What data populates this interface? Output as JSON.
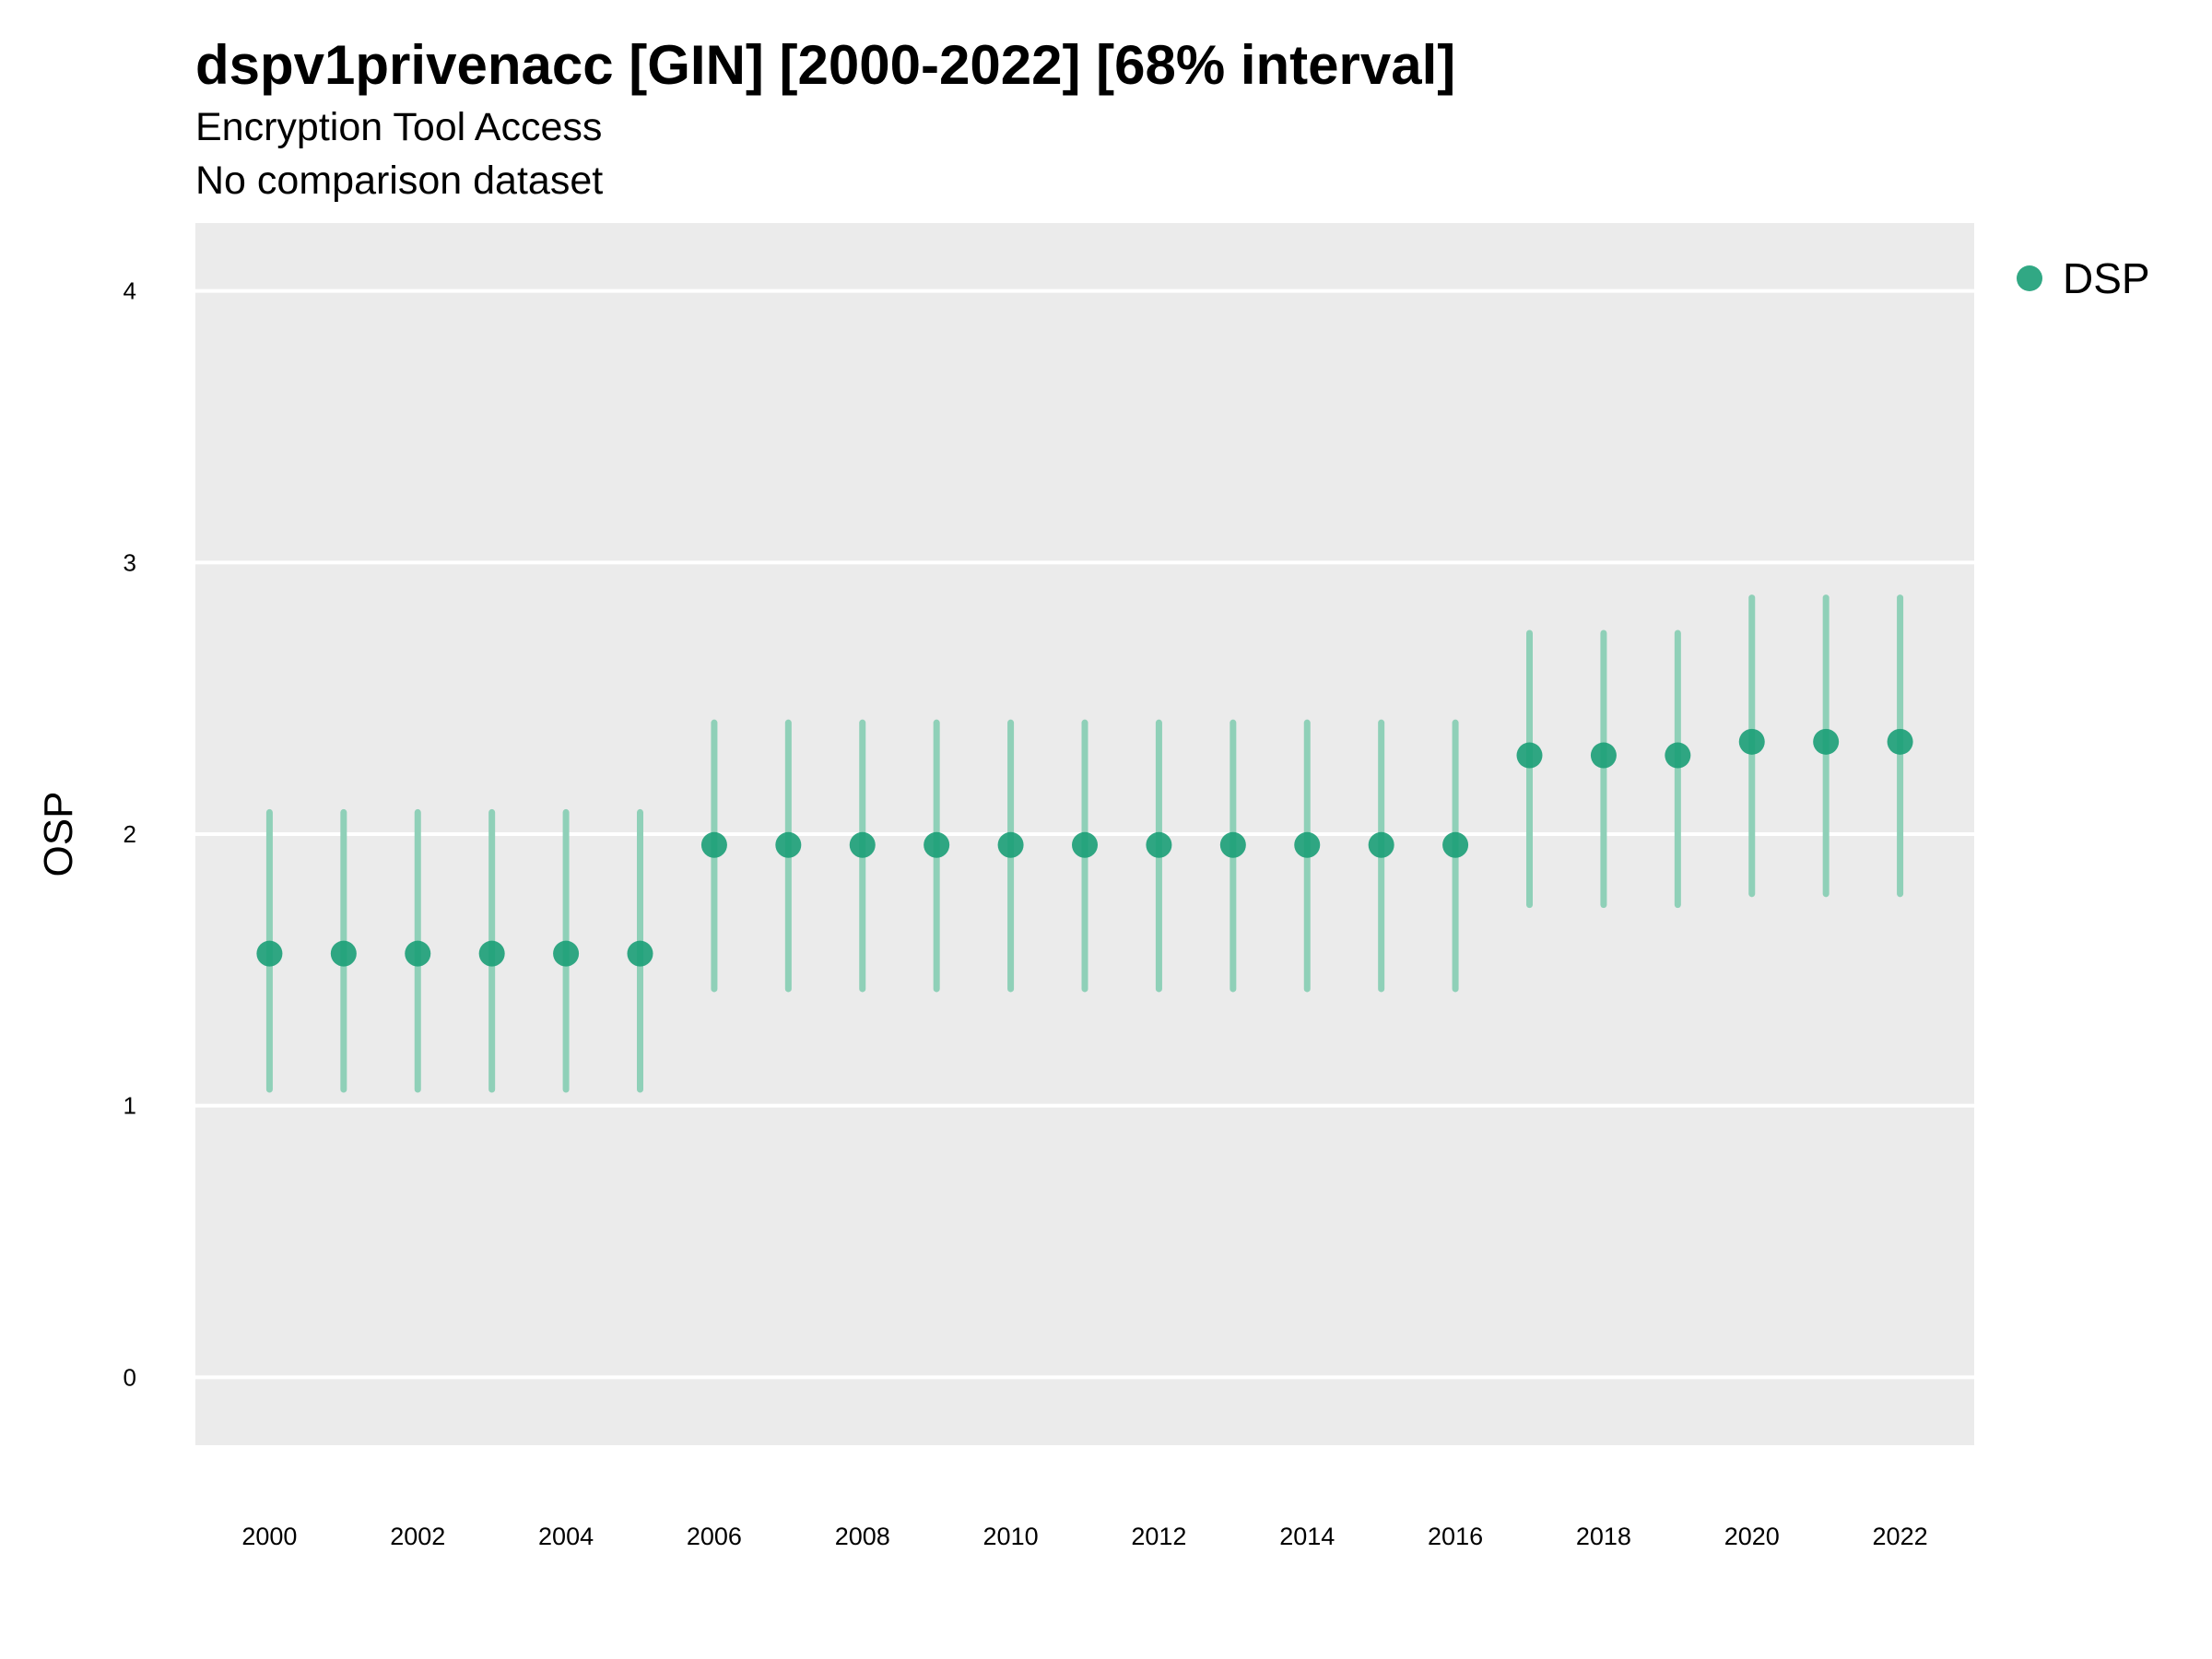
{
  "chart_data": {
    "type": "scatter",
    "title": "dspv1privenacc [GIN] [2000-2022] [68% interval]",
    "subtitle": [
      "Encryption Tool Access",
      "No comparison dataset"
    ],
    "xlabel": "",
    "ylabel": "OSP",
    "xlim": [
      1999,
      2023
    ],
    "ylim": [
      -0.25,
      4.25
    ],
    "x_ticks": [
      2000,
      2002,
      2004,
      2006,
      2008,
      2010,
      2012,
      2014,
      2016,
      2018,
      2020,
      2022
    ],
    "y_ticks": [
      0,
      1,
      2,
      3,
      4
    ],
    "grid": true,
    "legend_position": "right",
    "series": [
      {
        "name": "DSP",
        "color": "#1b9e77",
        "x": [
          2000,
          2001,
          2002,
          2003,
          2004,
          2005,
          2006,
          2007,
          2008,
          2009,
          2010,
          2011,
          2012,
          2013,
          2014,
          2015,
          2016,
          2017,
          2018,
          2019,
          2020,
          2021,
          2022
        ],
        "y": [
          1.56,
          1.56,
          1.56,
          1.56,
          1.56,
          1.56,
          1.96,
          1.96,
          1.96,
          1.96,
          1.96,
          1.96,
          1.96,
          1.96,
          1.96,
          1.96,
          1.96,
          2.29,
          2.29,
          2.29,
          2.34,
          2.34,
          2.34
        ],
        "lower": [
          1.06,
          1.06,
          1.06,
          1.06,
          1.06,
          1.06,
          1.43,
          1.43,
          1.43,
          1.43,
          1.43,
          1.43,
          1.43,
          1.43,
          1.43,
          1.43,
          1.43,
          1.74,
          1.74,
          1.74,
          1.78,
          1.78,
          1.78
        ],
        "upper": [
          2.08,
          2.08,
          2.08,
          2.08,
          2.08,
          2.08,
          2.41,
          2.41,
          2.41,
          2.41,
          2.41,
          2.41,
          2.41,
          2.41,
          2.41,
          2.41,
          2.41,
          2.74,
          2.74,
          2.74,
          2.87,
          2.87,
          2.87
        ]
      }
    ]
  },
  "colors": {
    "panel_background": "#ebebeb",
    "grid": "#ffffff",
    "interval": "#8fd0b8"
  }
}
